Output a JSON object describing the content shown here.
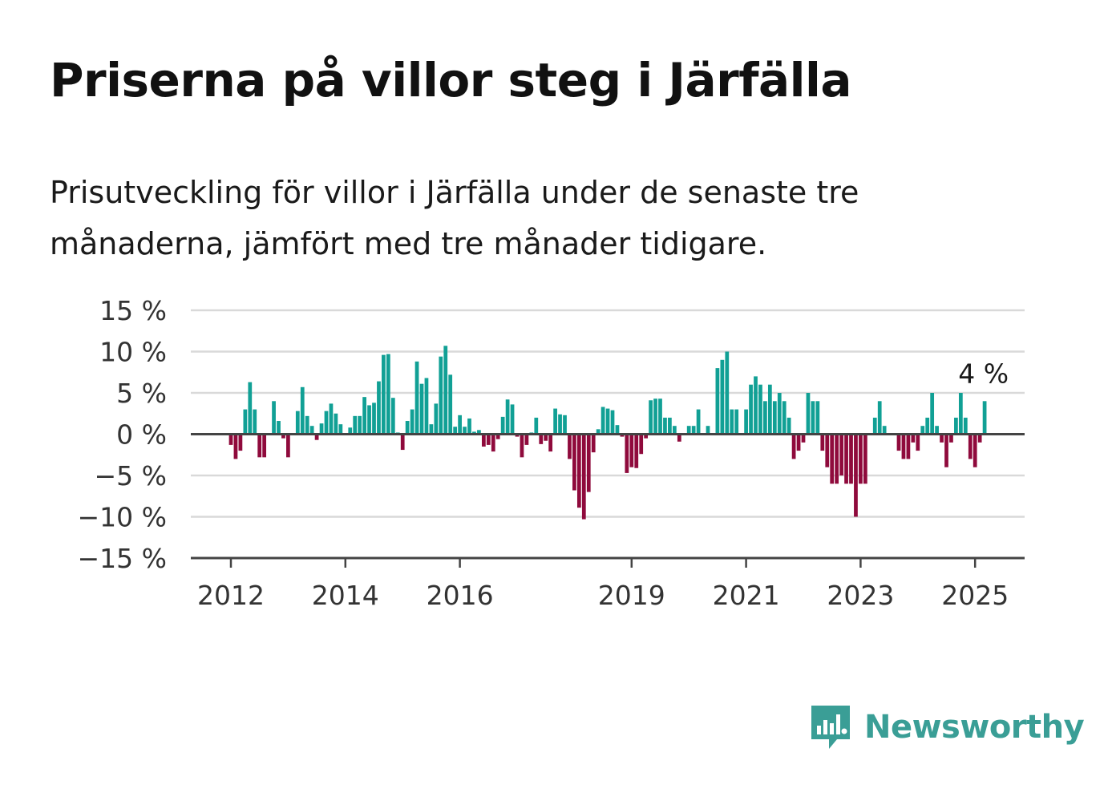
{
  "title": "Priserna på villor steg i Järfälla",
  "subtitle": "Prisutveckling för villor i Järfälla under de senaste tre månaderna, jämfört med tre månader tidigare.",
  "brand": "Newsworthy",
  "colors": {
    "positive": "#11a095",
    "negative": "#8f0a3c",
    "grid": "#d9d9d9",
    "axis": "#444444",
    "brand": "#3a9e96"
  },
  "chart_data": {
    "type": "bar",
    "y_unit": "%",
    "ylim": [
      -15,
      15
    ],
    "y_ticks": [
      {
        "value": 15,
        "label": "15 %"
      },
      {
        "value": 10,
        "label": "10 %"
      },
      {
        "value": 5,
        "label": "5 %"
      },
      {
        "value": 0,
        "label": "0 %"
      },
      {
        "value": -5,
        "label": "−5 %"
      },
      {
        "value": -10,
        "label": "−10 %"
      },
      {
        "value": -15,
        "label": "−15 %"
      }
    ],
    "x_ticks": [
      {
        "index": 0,
        "label": "2012"
      },
      {
        "index": 24,
        "label": "2014"
      },
      {
        "index": 48,
        "label": "2016"
      },
      {
        "index": 84,
        "label": "2019"
      },
      {
        "index": 108,
        "label": "2021"
      },
      {
        "index": 132,
        "label": "2023"
      },
      {
        "index": 156,
        "label": "2025"
      }
    ],
    "grid": true,
    "annotation": {
      "label": "4 %",
      "index": 158
    },
    "values": [
      -1.3,
      -3,
      -2,
      3,
      6.3,
      3,
      -2.8,
      -2.8,
      0,
      4,
      1.6,
      -0.5,
      -2.8,
      0,
      2.8,
      5.7,
      2.2,
      1,
      -0.7,
      1.3,
      2.8,
      3.7,
      2.5,
      1.2,
      0,
      0.8,
      2.2,
      2.2,
      4.5,
      3.5,
      3.8,
      6.4,
      9.6,
      9.7,
      4.4,
      0.2,
      -1.9,
      1.6,
      3,
      8.8,
      6.1,
      6.8,
      1.2,
      3.7,
      9.4,
      10.7,
      7.2,
      0.9,
      2.3,
      0.9,
      1.9,
      0.3,
      0.5,
      -1.5,
      -1.3,
      -2.1,
      -0.6,
      2.1,
      4.2,
      3.6,
      -0.3,
      -2.8,
      -1.3,
      0.2,
      2,
      -1.2,
      -0.8,
      -2.1,
      3.1,
      2.4,
      2.3,
      -3,
      -6.8,
      -8.9,
      -10.3,
      -7,
      -2.2,
      0.6,
      3.3,
      3.1,
      2.9,
      1.1,
      -0.3,
      -4.7,
      -4,
      -4.1,
      -2.4,
      -0.5,
      4.1,
      4.3,
      4.3,
      2,
      2,
      1,
      -0.9,
      0,
      1,
      1,
      3,
      0,
      1,
      0,
      8,
      9,
      10,
      3,
      3,
      0,
      3,
      6,
      7,
      6,
      4,
      6,
      4,
      5,
      4,
      2,
      -3,
      -2,
      -1,
      5,
      4,
      4,
      -2,
      -4,
      -6,
      -6,
      -5,
      -6,
      -6,
      -10,
      -6,
      -6,
      0,
      2,
      4,
      1,
      0,
      0,
      -2,
      -3,
      -3,
      -1,
      -2,
      1,
      2,
      5,
      1,
      -1,
      -4,
      -1,
      2,
      5,
      2,
      -3,
      -4,
      -1,
      4
    ]
  }
}
